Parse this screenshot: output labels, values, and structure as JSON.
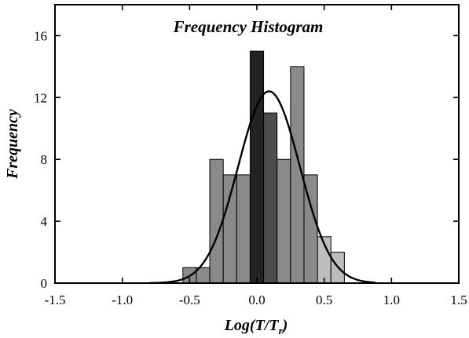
{
  "chart_data": {
    "type": "bar",
    "title": "Frequency Histogram",
    "xlabel": "Log(T/T",
    "xlabel_subscript": "r",
    "xlabel_suffix": ")",
    "ylabel": "Frequency",
    "xlim": [
      -1.5,
      1.5
    ],
    "ylim": [
      0,
      18
    ],
    "x_ticks": [
      -1.5,
      -1.0,
      -0.5,
      0.0,
      0.5,
      1.0,
      1.5
    ],
    "y_ticks": [
      0,
      4,
      8,
      12,
      16
    ],
    "x_tick_labels": [
      "-1.5",
      "-1.0",
      "-0.5",
      "0.0",
      "0.5",
      "1.0",
      "1.5"
    ],
    "y_tick_labels": [
      "0",
      "4",
      "8",
      "12",
      "16"
    ],
    "grid": false,
    "bins": [
      {
        "x0": -0.55,
        "x1": -0.45,
        "value": 1,
        "color": "#8a8a8a"
      },
      {
        "x0": -0.45,
        "x1": -0.35,
        "value": 1,
        "color": "#8a8a8a"
      },
      {
        "x0": -0.35,
        "x1": -0.25,
        "value": 8,
        "color": "#8a8a8a"
      },
      {
        "x0": -0.25,
        "x1": -0.15,
        "value": 7,
        "color": "#8a8a8a"
      },
      {
        "x0": -0.15,
        "x1": -0.05,
        "value": 7,
        "color": "#8a8a8a"
      },
      {
        "x0": -0.05,
        "x1": 0.05,
        "value": 15,
        "color": "#232323"
      },
      {
        "x0": 0.05,
        "x1": 0.15,
        "value": 11,
        "color": "#4d4d4d"
      },
      {
        "x0": 0.15,
        "x1": 0.25,
        "value": 8,
        "color": "#8a8a8a"
      },
      {
        "x0": 0.25,
        "x1": 0.35,
        "value": 14,
        "color": "#8a8a8a"
      },
      {
        "x0": 0.35,
        "x1": 0.45,
        "value": 7,
        "color": "#8a8a8a"
      },
      {
        "x0": 0.45,
        "x1": 0.55,
        "value": 3,
        "color": "#bdbdbd"
      },
      {
        "x0": 0.55,
        "x1": 0.65,
        "value": 2,
        "color": "#bdbdbd"
      }
    ],
    "fit_curve": {
      "type": "normal",
      "mean": 0.09,
      "sd": 0.23,
      "peak": 12.4,
      "x_range": [
        -0.8,
        0.88
      ]
    }
  }
}
